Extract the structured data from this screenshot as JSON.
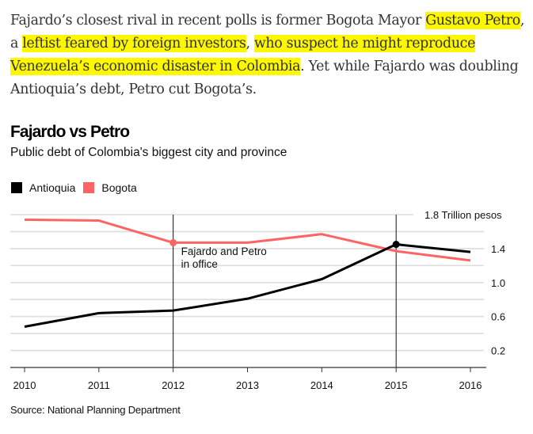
{
  "article": {
    "lines": [
      [
        {
          "text": "Fajardo’s closest rival in recent polls is former Bogota Mayor ",
          "highlight": false
        },
        {
          "text": "Gustavo Petro",
          "highlight": true
        },
        {
          "text": ",",
          "highlight": false
        }
      ],
      [
        {
          "text": "a ",
          "highlight": false
        },
        {
          "text": "leftist feared by foreign investors",
          "highlight": true
        },
        {
          "text": ", ",
          "highlight": false
        },
        {
          "text": "who suspect he might reproduce ",
          "highlight": true
        }
      ],
      [
        {
          "text": "Venezuela’s economic disaster in Colombia",
          "highlight": true
        },
        {
          "text": ". Yet while Fajardo was doubling",
          "highlight": false
        }
      ],
      [
        {
          "text": "Antioquia’s debt, Petro cut Bogota’s.",
          "highlight": false
        }
      ]
    ],
    "highlight_color": "#fdf700"
  },
  "chart_data": {
    "type": "line",
    "title": "Fajardo vs Petro",
    "subtitle": "Public debt of Colombia's biggest city and province",
    "x": [
      2010,
      2011,
      2012,
      2013,
      2014,
      2015,
      2016
    ],
    "x_tick_labels": [
      "2010",
      "2011",
      "2012",
      "2013",
      "2014",
      "2015",
      "2016"
    ],
    "series": [
      {
        "name": "Antioquia",
        "color": "#000000",
        "values": [
          0.48,
          0.64,
          0.67,
          0.81,
          1.04,
          1.45,
          1.36
        ],
        "marker_at": [
          2015
        ]
      },
      {
        "name": "Bogota",
        "color": "#ff6464",
        "values": [
          1.74,
          1.73,
          1.47,
          1.47,
          1.57,
          1.37,
          1.26
        ],
        "marker_at": [
          2012
        ]
      }
    ],
    "ylim": [
      0,
      1.8
    ],
    "y_gridlines": [
      0.2,
      0.4,
      0.6,
      0.8,
      1.0,
      1.2,
      1.4,
      1.6,
      1.8
    ],
    "y_tick_labels": [
      {
        "value": 1.8,
        "label": "1.8 Trillion pesos"
      },
      {
        "value": 1.4,
        "label": "1.4"
      },
      {
        "value": 1.0,
        "label": "1.0"
      },
      {
        "value": 0.6,
        "label": "0.6"
      },
      {
        "value": 0.2,
        "label": "0.2"
      }
    ],
    "ylabel": "Trillion pesos",
    "xlabel": "",
    "grid": true,
    "legend_position": "top-left",
    "vertical_markers": [
      2012,
      2015
    ],
    "annotation": {
      "x": 2012,
      "lines": [
        "Fajardo and Petro",
        "in office"
      ]
    },
    "source": "Source: National Planning Department"
  }
}
